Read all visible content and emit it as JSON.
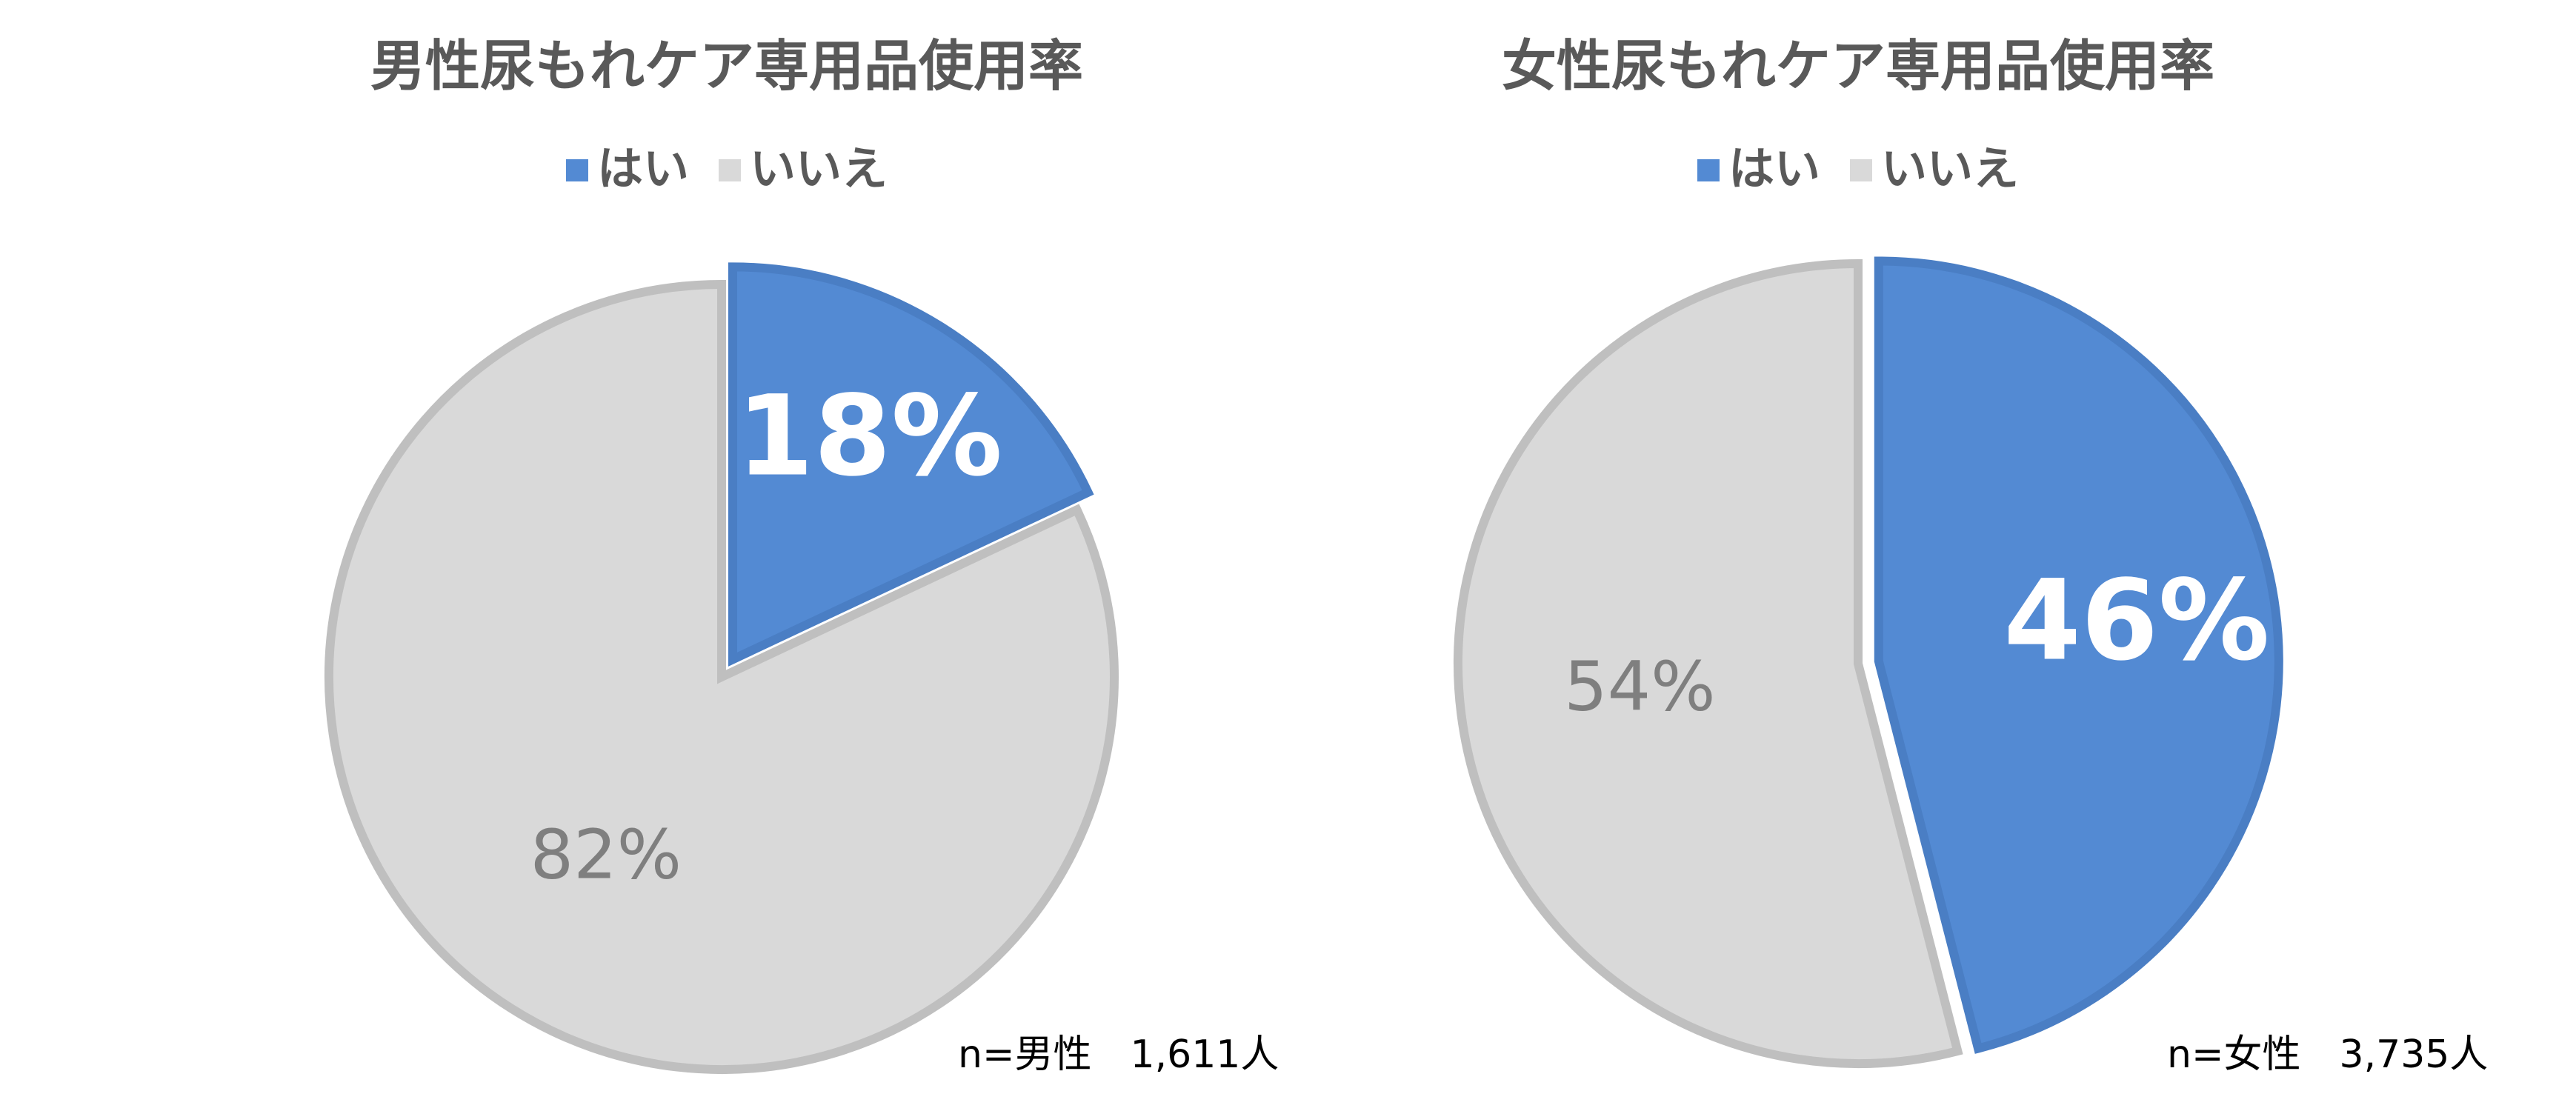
{
  "chart_data": [
    {
      "type": "pie",
      "title": "男性尿もれケア専用品使用率",
      "categories": [
        "はい",
        "いいえ"
      ],
      "values": [
        18,
        82
      ],
      "value_labels": [
        "18%",
        "82%"
      ],
      "colors": [
        "#538ad3",
        "#d9d9d9"
      ],
      "note": "n=男性　1,611人"
    },
    {
      "type": "pie",
      "title": "女性尿もれケア専用品使用率",
      "categories": [
        "はい",
        "いいえ"
      ],
      "values": [
        46,
        54
      ],
      "value_labels": [
        "46%",
        "54%"
      ],
      "colors": [
        "#538ad3",
        "#d9d9d9"
      ],
      "note": "n=女性　3,735人"
    }
  ]
}
